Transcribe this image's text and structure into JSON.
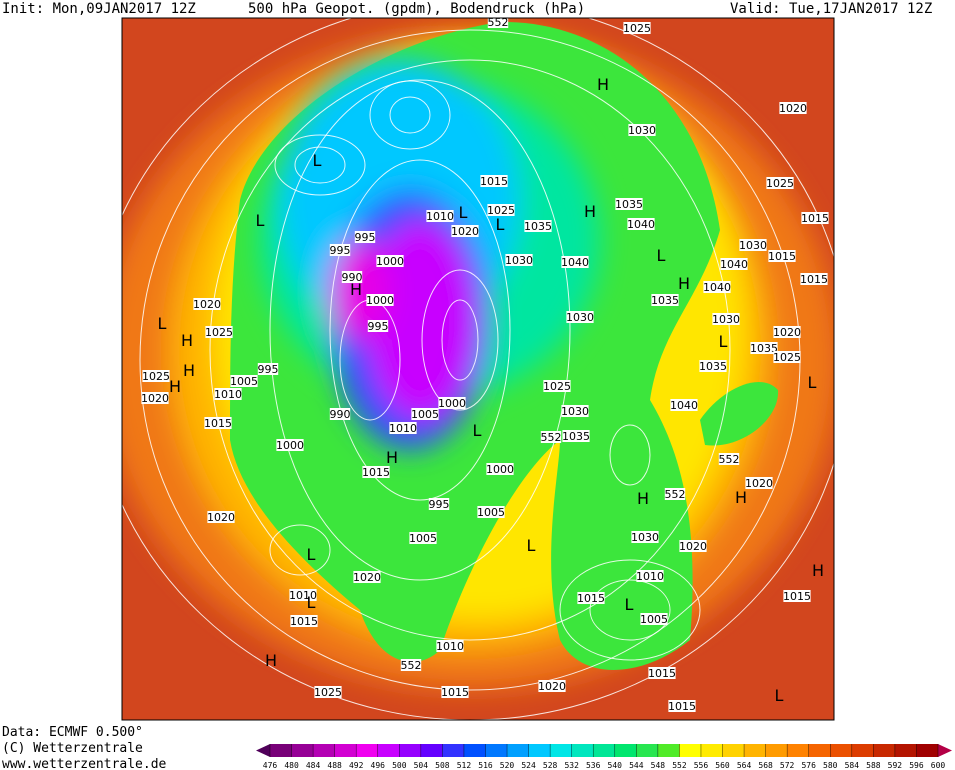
{
  "header": {
    "init": "Init: Mon,09JAN2017 12Z",
    "title": "500 hPa Geopot. (gpdm), Bodendruck (hPa)",
    "valid": "Valid: Tue,17JAN2017 12Z"
  },
  "footer": {
    "data": "Data: ECMWF  0.500°",
    "copyright": "(C) Wetterzentrale",
    "url": "www.wetterzentrale.de"
  },
  "colorbar": {
    "ticks": [
      476,
      480,
      484,
      488,
      492,
      496,
      500,
      504,
      508,
      512,
      516,
      520,
      524,
      528,
      532,
      536,
      540,
      544,
      548,
      552,
      556,
      560,
      564,
      568,
      572,
      576,
      580,
      584,
      588,
      592,
      596,
      600
    ]
  },
  "map": {
    "labels": [
      "1025",
      "552",
      "H",
      "1020",
      "1030",
      "1025",
      "1015",
      "L",
      "1015",
      "L",
      "1010",
      "L",
      "1025",
      "1020",
      "L",
      "1035",
      "H",
      "1035",
      "1040",
      "1030",
      "1015",
      "1040",
      "1015",
      "L",
      "995",
      "995",
      "1000",
      "990",
      "H",
      "1000",
      "1030",
      "1040",
      "H",
      "1040",
      "1035",
      "1020",
      "L",
      "1025",
      "H",
      "995",
      "1030",
      "1030",
      "1020",
      "L",
      "1035",
      "1025",
      "995",
      "1025",
      "H",
      "1005",
      "1035",
      "1020",
      "H",
      "1010",
      "990",
      "1005",
      "1000",
      "1025",
      "L",
      "1015",
      "1010",
      "1030",
      "1040",
      "1000",
      "L",
      "1035",
      "552",
      "1015",
      "H",
      "1000",
      "552",
      "552",
      "H",
      "H",
      "1020",
      "995",
      "1005",
      "1020",
      "L",
      "1005",
      "1030",
      "1020",
      "L",
      "1020",
      "1010",
      "H",
      "1010",
      "L",
      "1015",
      "1015",
      "L",
      "1005",
      "1015",
      "1010",
      "H",
      "552",
      "1015",
      "1025",
      "1015",
      "1020",
      "L",
      "1015"
    ]
  }
}
